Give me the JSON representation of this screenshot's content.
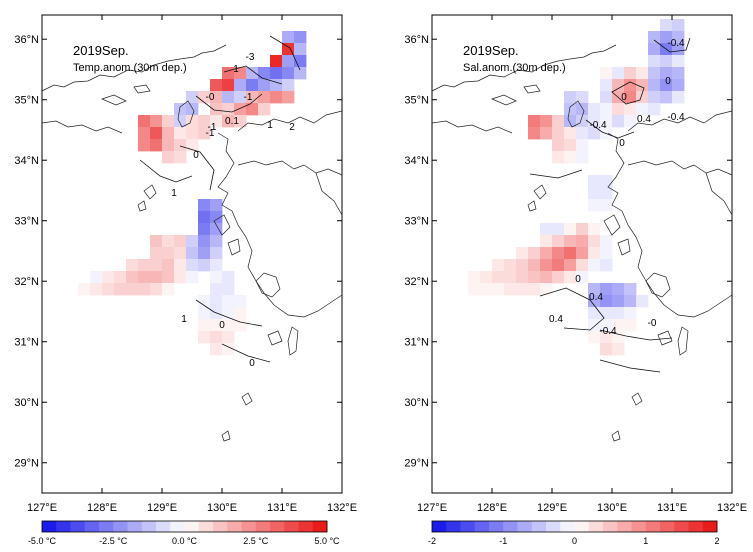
{
  "panels": [
    {
      "title": "2019Sep.",
      "subtitle": "Temp.anom.(30m dep.)",
      "colorbar_ticks": [
        "-5.0 °C",
        "-2.5 °C",
        "0.0 °C",
        "2.5 °C",
        "5.0 °C"
      ],
      "contour_labels": [
        "-3",
        "1",
        "-1",
        "-0",
        "-1",
        "0.1",
        "1",
        "2",
        "-1",
        "0",
        "1",
        "1",
        "0",
        "0"
      ]
    },
    {
      "title": "2019Sep.",
      "subtitle": "Sal.anom.(30m dep.)",
      "colorbar_ticks": [
        "-2",
        "-1",
        "0",
        "1",
        "2"
      ],
      "contour_labels": [
        "-0.4",
        "0",
        "0",
        "-0.4",
        "0.4",
        "-0.4",
        "0",
        "0",
        "0.4",
        "0.4",
        "-0.4",
        "-0"
      ]
    }
  ],
  "lon_labels": [
    "127°E",
    "128°E",
    "129°E",
    "130°E",
    "131°E",
    "132°E"
  ],
  "lat_labels": [
    "36°N",
    "35°N",
    "34°N",
    "33°N",
    "32°N",
    "31°N",
    "30°N",
    "29°N"
  ],
  "colors": {
    "negative_strong": "#1010e8",
    "neutral": "#ffffff",
    "positive_strong": "#e81010"
  },
  "color_levels": 20
}
